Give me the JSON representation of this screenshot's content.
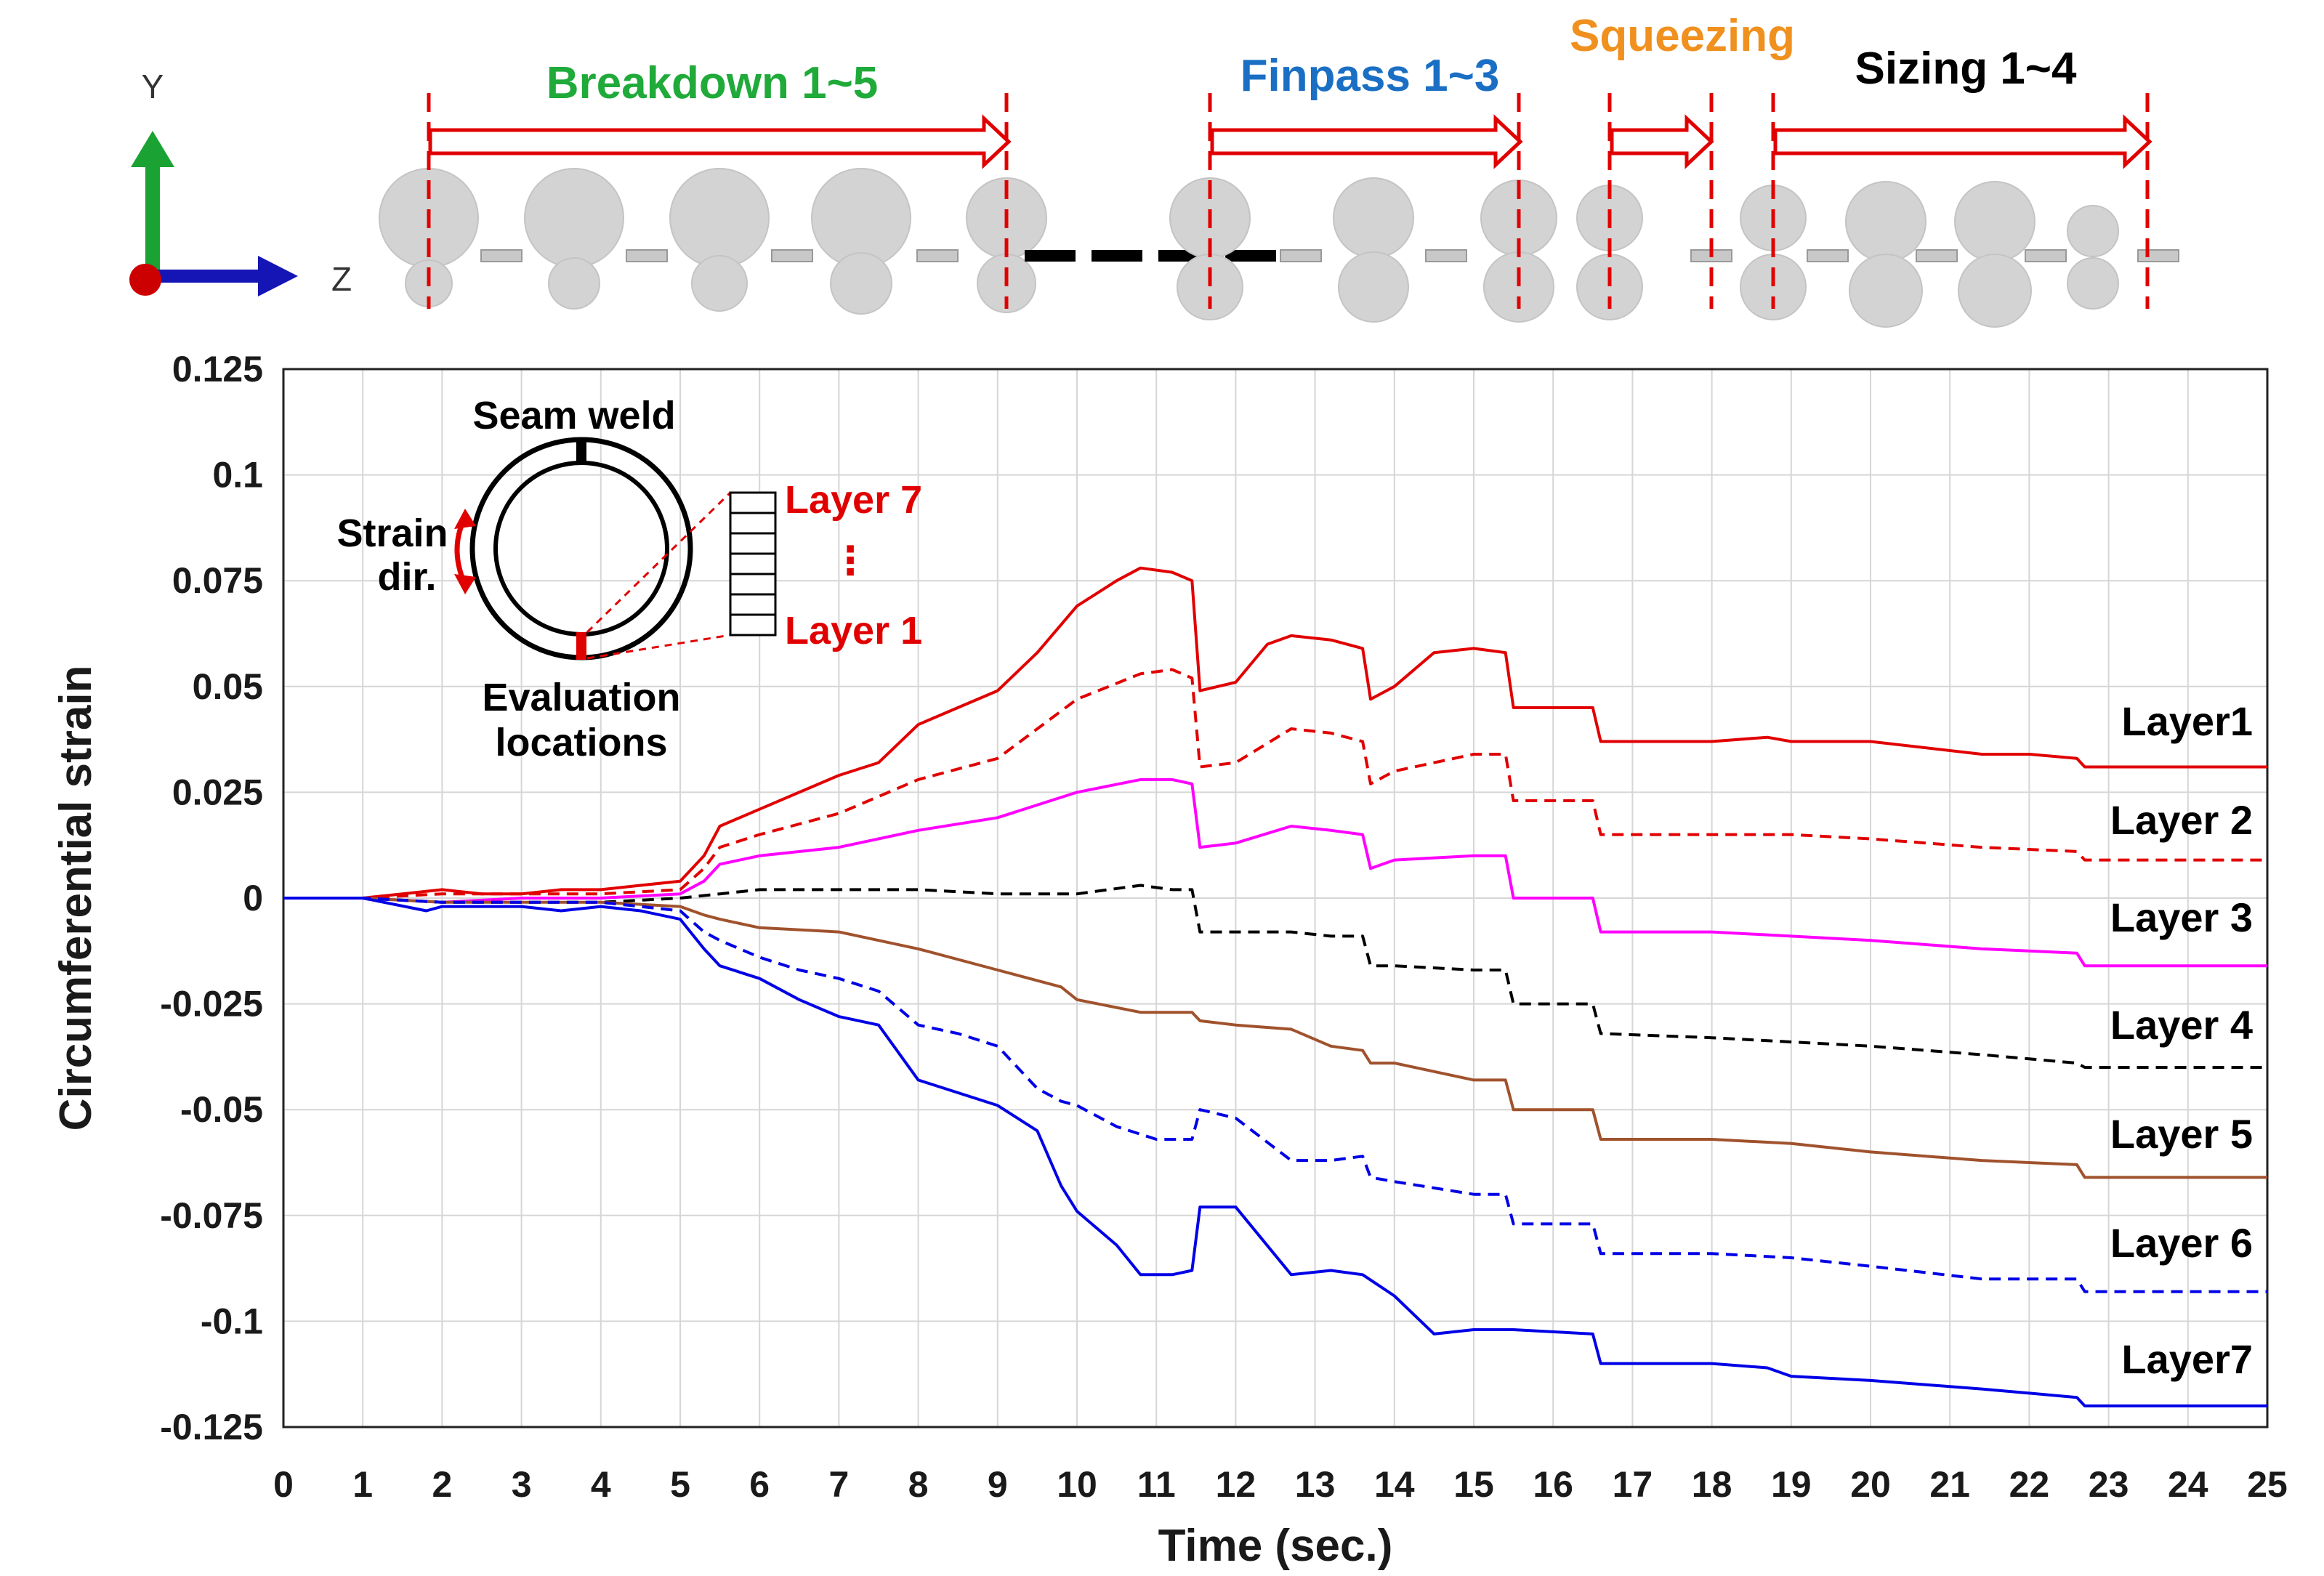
{
  "chart_data": {
    "type": "line",
    "xlabel": "Time (sec.)",
    "ylabel": "Circumferential strain",
    "xlim": [
      0,
      25
    ],
    "ylim": [
      -0.125,
      0.125
    ],
    "xticks": [
      "0",
      "1",
      "2",
      "3",
      "4",
      "5",
      "6",
      "7",
      "8",
      "9",
      "10",
      "11",
      "12",
      "13",
      "14",
      "15",
      "16",
      "17",
      "18",
      "19",
      "20",
      "21",
      "22",
      "23",
      "24",
      "25"
    ],
    "yticks": [
      "0.125",
      "0.1",
      "0.075",
      "0.05",
      "0.025",
      "0",
      "-0.025",
      "-0.05",
      "-0.075",
      "-0.1",
      "-0.125"
    ],
    "grid": true,
    "series": [
      {
        "name": "Layer1",
        "color": "#e10000",
        "dash": "solid",
        "x": [
          0,
          1,
          1.5,
          2,
          2.5,
          3,
          3.5,
          4,
          4.5,
          5,
          5.3,
          5.5,
          6,
          6.5,
          7,
          7.5,
          8,
          8.5,
          9,
          9.5,
          10,
          10.5,
          10.8,
          11.2,
          11.45,
          11.55,
          12,
          12.4,
          12.7,
          13.2,
          13.6,
          13.7,
          14,
          14.5,
          15,
          15.4,
          15.5,
          16,
          16.5,
          16.6,
          17,
          18,
          18.7,
          19,
          20,
          21.4,
          22,
          22.6,
          22.7,
          23,
          25
        ],
        "y": [
          0,
          0,
          0.001,
          0.002,
          0.001,
          0.001,
          0.002,
          0.002,
          0.003,
          0.004,
          0.01,
          0.017,
          0.021,
          0.025,
          0.029,
          0.032,
          0.041,
          0.045,
          0.049,
          0.058,
          0.069,
          0.075,
          0.078,
          0.077,
          0.075,
          0.049,
          0.051,
          0.06,
          0.062,
          0.061,
          0.059,
          0.047,
          0.05,
          0.058,
          0.059,
          0.058,
          0.045,
          0.045,
          0.045,
          0.037,
          0.037,
          0.037,
          0.038,
          0.037,
          0.037,
          0.034,
          0.034,
          0.033,
          0.031,
          0.031,
          0.031
        ]
      },
      {
        "name": "Layer 2",
        "color": "#e10000",
        "dash": "dashed",
        "x": [
          0,
          1,
          2,
          3,
          4,
          5,
          5.3,
          5.5,
          6,
          7,
          8,
          9,
          10,
          10.8,
          11.2,
          11.45,
          11.55,
          12,
          12.7,
          13.2,
          13.6,
          13.7,
          14,
          15,
          15.4,
          15.5,
          16.5,
          16.6,
          18,
          19,
          20,
          21.4,
          22.6,
          22.7,
          25
        ],
        "y": [
          0,
          0,
          0.001,
          0.001,
          0.001,
          0.002,
          0.007,
          0.012,
          0.015,
          0.02,
          0.028,
          0.033,
          0.047,
          0.053,
          0.054,
          0.052,
          0.031,
          0.032,
          0.04,
          0.039,
          0.037,
          0.027,
          0.03,
          0.034,
          0.034,
          0.023,
          0.023,
          0.015,
          0.015,
          0.015,
          0.014,
          0.012,
          0.011,
          0.009,
          0.009
        ]
      },
      {
        "name": "Layer 3",
        "color": "#ff00ff",
        "dash": "solid",
        "x": [
          0,
          1,
          2,
          3,
          4,
          5,
          5.3,
          5.5,
          6,
          7,
          8,
          9,
          10,
          10.8,
          11.2,
          11.45,
          11.55,
          12,
          12.7,
          13.2,
          13.6,
          13.7,
          14,
          15,
          15.4,
          15.5,
          16.5,
          16.6,
          18,
          19,
          20,
          21.4,
          22.6,
          22.7,
          25
        ],
        "y": [
          0,
          0,
          -0.001,
          0,
          0,
          0.001,
          0.004,
          0.008,
          0.01,
          0.012,
          0.016,
          0.019,
          0.025,
          0.028,
          0.028,
          0.027,
          0.012,
          0.013,
          0.017,
          0.016,
          0.015,
          0.007,
          0.009,
          0.01,
          0.01,
          0,
          0,
          -0.008,
          -0.008,
          -0.009,
          -0.01,
          -0.012,
          -0.013,
          -0.016,
          -0.016
        ]
      },
      {
        "name": "Layer 4",
        "color": "#000000",
        "dash": "dashed",
        "x": [
          0,
          1,
          2,
          3,
          4,
          5,
          5.5,
          6,
          7,
          8,
          9,
          10,
          10.8,
          11.2,
          11.45,
          11.55,
          12,
          12.7,
          13.2,
          13.6,
          13.7,
          14,
          15,
          15.4,
          15.5,
          16.5,
          16.6,
          18,
          19,
          20,
          21.4,
          22.6,
          22.7,
          25
        ],
        "y": [
          0,
          0,
          -0.001,
          -0.001,
          -0.001,
          0,
          0.001,
          0.002,
          0.002,
          0.002,
          0.001,
          0.001,
          0.003,
          0.002,
          0.002,
          -0.008,
          -0.008,
          -0.008,
          -0.009,
          -0.009,
          -0.016,
          -0.016,
          -0.017,
          -0.017,
          -0.025,
          -0.025,
          -0.032,
          -0.033,
          -0.034,
          -0.035,
          -0.037,
          -0.039,
          -0.04,
          -0.04
        ]
      },
      {
        "name": "Layer 5",
        "color": "#a0522d",
        "dash": "solid",
        "x": [
          0,
          1,
          2,
          3,
          4,
          5,
          5.3,
          5.5,
          6,
          7,
          8,
          9,
          9.8,
          10,
          10.8,
          11.2,
          11.45,
          11.55,
          12,
          12.7,
          13.2,
          13.6,
          13.7,
          14,
          15,
          15.4,
          15.5,
          16.5,
          16.6,
          18,
          19,
          20,
          21.4,
          22.6,
          22.7,
          25
        ],
        "y": [
          0,
          0,
          -0.001,
          -0.001,
          -0.001,
          -0.002,
          -0.004,
          -0.005,
          -0.007,
          -0.008,
          -0.012,
          -0.017,
          -0.021,
          -0.024,
          -0.027,
          -0.027,
          -0.027,
          -0.029,
          -0.03,
          -0.031,
          -0.035,
          -0.036,
          -0.039,
          -0.039,
          -0.043,
          -0.043,
          -0.05,
          -0.05,
          -0.057,
          -0.057,
          -0.058,
          -0.06,
          -0.062,
          -0.063,
          -0.066,
          -0.066
        ]
      },
      {
        "name": "Layer 6",
        "color": "#0000e6",
        "dash": "dashed",
        "x": [
          0,
          1,
          2,
          3,
          4,
          5,
          5.3,
          5.5,
          6,
          6.5,
          7,
          7.5,
          8,
          8.5,
          9,
          9.5,
          9.8,
          10,
          10.5,
          11,
          11.45,
          11.55,
          12,
          12.7,
          13.2,
          13.6,
          13.7,
          14,
          15,
          15.4,
          15.5,
          16.5,
          16.6,
          18,
          19,
          20,
          21.4,
          22.6,
          22.7,
          25
        ],
        "y": [
          0,
          0,
          -0.001,
          -0.001,
          -0.001,
          -0.003,
          -0.008,
          -0.01,
          -0.014,
          -0.017,
          -0.019,
          -0.022,
          -0.03,
          -0.032,
          -0.035,
          -0.045,
          -0.048,
          -0.049,
          -0.054,
          -0.057,
          -0.057,
          -0.05,
          -0.052,
          -0.062,
          -0.062,
          -0.061,
          -0.066,
          -0.067,
          -0.07,
          -0.07,
          -0.077,
          -0.077,
          -0.084,
          -0.084,
          -0.085,
          -0.087,
          -0.09,
          -0.09,
          -0.093,
          -0.093
        ]
      },
      {
        "name": "Layer7",
        "color": "#0000e6",
        "dash": "solid",
        "x": [
          0,
          1,
          1.8,
          2,
          3,
          3.5,
          4,
          4.5,
          5,
          5.3,
          5.5,
          6,
          6.5,
          7,
          7.5,
          8,
          8.5,
          9,
          9.5,
          9.8,
          10,
          10.5,
          10.8,
          11.2,
          11.45,
          11.55,
          12,
          12.7,
          13.2,
          13.6,
          14,
          14.5,
          15,
          15.4,
          15.5,
          16.5,
          16.6,
          18,
          18.7,
          19,
          20,
          21.4,
          22,
          22.6,
          22.7,
          23,
          25
        ],
        "y": [
          0,
          0,
          -0.003,
          -0.002,
          -0.002,
          -0.003,
          -0.002,
          -0.003,
          -0.005,
          -0.012,
          -0.016,
          -0.019,
          -0.024,
          -0.028,
          -0.03,
          -0.043,
          -0.046,
          -0.049,
          -0.055,
          -0.068,
          -0.074,
          -0.082,
          -0.089,
          -0.089,
          -0.088,
          -0.073,
          -0.073,
          -0.089,
          -0.088,
          -0.089,
          -0.094,
          -0.103,
          -0.102,
          -0.102,
          -0.102,
          -0.103,
          -0.11,
          -0.11,
          -0.111,
          -0.113,
          -0.114,
          -0.116,
          -0.117,
          -0.118,
          -0.12,
          -0.12,
          -0.12
        ]
      }
    ]
  },
  "stages": {
    "breakdown": {
      "label": "Breakdown 1~5",
      "color": "#1faa3a"
    },
    "finpass": {
      "label": "Finpass 1~3",
      "color": "#1a6fc4"
    },
    "squeezing": {
      "label": "Squeezing",
      "color": "#f0901e"
    },
    "sizing": {
      "label": "Sizing 1~4",
      "color": "#000000"
    }
  },
  "triad": {
    "y_label": "Y",
    "z_label": "Z"
  },
  "inset": {
    "seam_weld": "Seam weld",
    "strain_dir_1": "Strain",
    "strain_dir_2": "dir.",
    "evaluation_1": "Evaluation",
    "evaluation_2": "locations",
    "layer_top": "Layer 7",
    "layer_dots": "⋮",
    "layer_bottom": "Layer 1"
  }
}
